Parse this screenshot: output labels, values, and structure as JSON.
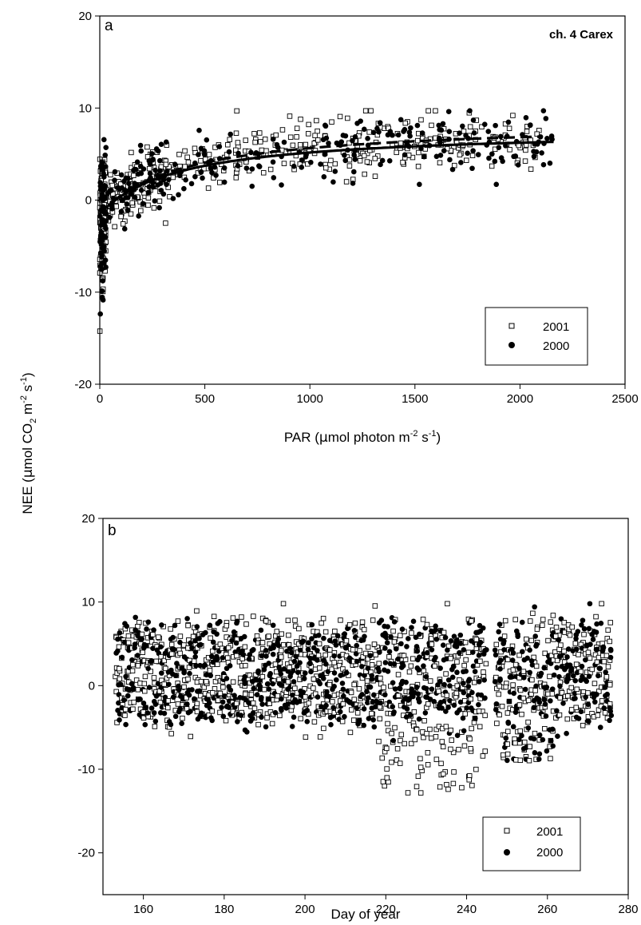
{
  "figure": {
    "shared_ylabel": {
      "pre": "NEE (",
      "mu": "μ",
      "post": "mol CO",
      "sub": "2",
      "mid": " m",
      "sup1": "-2",
      "mid2": " s",
      "sup2": "-1",
      "end": ")"
    }
  },
  "chart_data": [
    {
      "panel": "a",
      "type": "scatter",
      "title": "ch. 4 Carex",
      "xlabel": {
        "pre": "PAR (",
        "mu": "μ",
        "post": "mol photon m",
        "sup1": "-2",
        "mid": " s",
        "sup2": "-1",
        "end": ")"
      },
      "xlim": [
        0,
        2500
      ],
      "ylim": [
        -20,
        20
      ],
      "xticks": [
        0,
        500,
        1000,
        1500,
        2000,
        2500
      ],
      "yticks": [
        -20,
        -10,
        0,
        10,
        20
      ],
      "grid": false,
      "legend_position": "bottom-right",
      "series": [
        {
          "name": "2001",
          "marker": "open-square",
          "color": "#000000",
          "fit": {
            "type": "rectangular-hyperbola",
            "style": "dashed",
            "pmax": 10.0,
            "k": 400,
            "r": 1.5,
            "xmax": 2100
          }
        },
        {
          "name": "2000",
          "marker": "filled-circle",
          "color": "#000000",
          "fit": {
            "type": "rectangular-hyperbola",
            "style": "solid",
            "pmax": 9.2,
            "k": 380,
            "r": 1.5,
            "xmax": 2160
          }
        }
      ]
    },
    {
      "panel": "b",
      "type": "scatter",
      "title": "",
      "xlabel": "Day of year",
      "xlim": [
        150,
        280
      ],
      "ylim": [
        -25,
        20
      ],
      "xticks": [
        160,
        180,
        200,
        220,
        240,
        260,
        280
      ],
      "yticks": [
        -20,
        -10,
        0,
        10,
        20
      ],
      "grid": false,
      "legend_position": "bottom-right",
      "day_ranges": [
        [
          153,
          244
        ],
        [
          247,
          275
        ]
      ],
      "series": [
        {
          "name": "2001",
          "marker": "open-square",
          "color": "#000000"
        },
        {
          "name": "2000",
          "marker": "filled-circle",
          "color": "#000000"
        }
      ]
    }
  ]
}
